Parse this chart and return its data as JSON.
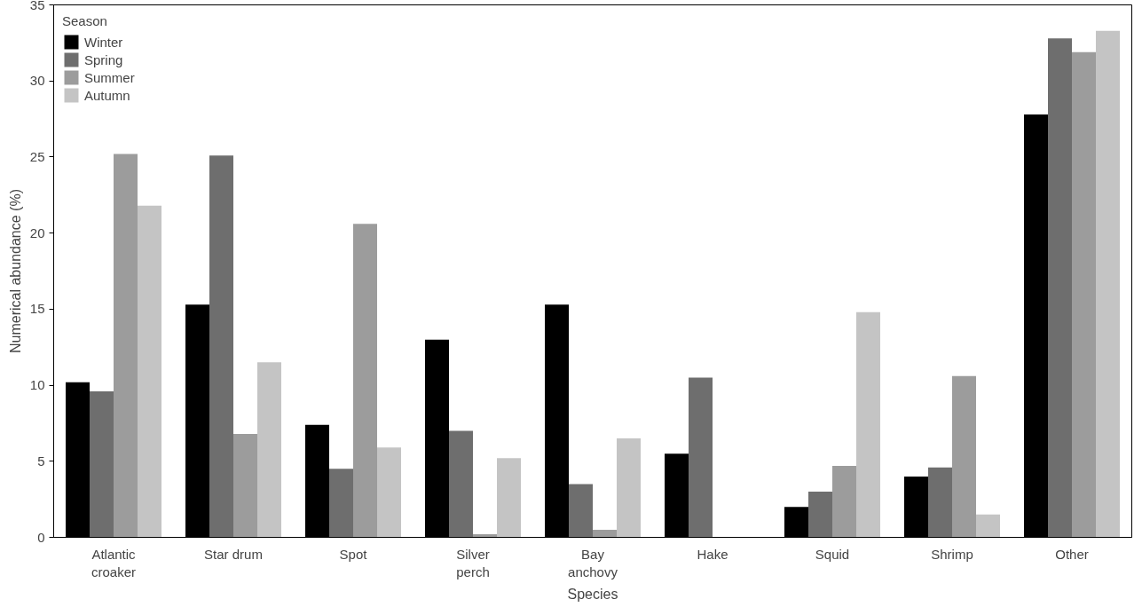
{
  "chart_data": {
    "type": "bar",
    "xlabel": "Species",
    "ylabel": "Numerical abundance (%)",
    "legend_title": "Season",
    "legend": "top left",
    "grid": false,
    "categories": [
      "Atlantic\ncroaker",
      "Star drum",
      "Spot",
      "Silver\nperch",
      "Bay\nanchovy",
      "Hake",
      "Squid",
      "Shrimp",
      "Other"
    ],
    "ylim": [
      0,
      35
    ],
    "yticks": [
      0,
      5,
      10,
      15,
      20,
      25,
      30,
      35
    ],
    "series": [
      {
        "name": "Winter",
        "color": "#000000",
        "values": [
          10.2,
          15.3,
          7.4,
          13.0,
          15.3,
          5.5,
          2.0,
          4.0,
          27.8
        ]
      },
      {
        "name": "Spring",
        "color": "#6e6e6e",
        "values": [
          9.6,
          25.1,
          4.5,
          7.0,
          3.5,
          10.5,
          3.0,
          4.6,
          32.8
        ]
      },
      {
        "name": "Summer",
        "color": "#9c9c9c",
        "values": [
          25.2,
          6.8,
          20.6,
          0.2,
          0.5,
          0,
          4.7,
          10.6,
          31.9
        ]
      },
      {
        "name": "Autumn",
        "color": "#c4c4c4",
        "values": [
          21.8,
          11.5,
          5.9,
          5.2,
          6.5,
          0,
          14.8,
          1.5,
          33.3
        ]
      }
    ]
  }
}
